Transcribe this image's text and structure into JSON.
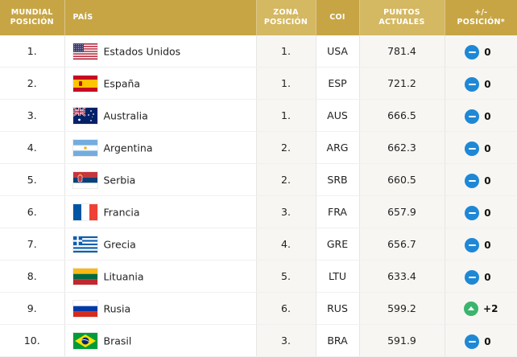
{
  "headers": {
    "world_rank": [
      "MUNDIAL",
      "POSICIÓN"
    ],
    "country": "PAÍS",
    "zone_rank": [
      "ZONA",
      "POSICIÓN"
    ],
    "ioc": "COI",
    "points": [
      "PUNTOS",
      "ACTUALES"
    ],
    "change": [
      "+/-",
      "POSICIÓN*"
    ]
  },
  "colors": {
    "header_gold": "#c7a544",
    "header_light": "#d4b862",
    "badge_neutral": "#1e88d6",
    "badge_up": "#3bb56e"
  },
  "rows": [
    {
      "rank": "1.",
      "country": "Estados Unidos",
      "flag": "usa-flag-icon",
      "zone": "1.",
      "ioc": "USA",
      "points": "781.4",
      "change": "0",
      "trend": "neutral"
    },
    {
      "rank": "2.",
      "country": "España",
      "flag": "spain-flag-icon",
      "zone": "1.",
      "ioc": "ESP",
      "points": "721.2",
      "change": "0",
      "trend": "neutral"
    },
    {
      "rank": "3.",
      "country": "Australia",
      "flag": "australia-flag-icon",
      "zone": "1.",
      "ioc": "AUS",
      "points": "666.5",
      "change": "0",
      "trend": "neutral"
    },
    {
      "rank": "4.",
      "country": "Argentina",
      "flag": "argentina-flag-icon",
      "zone": "2.",
      "ioc": "ARG",
      "points": "662.3",
      "change": "0",
      "trend": "neutral"
    },
    {
      "rank": "5.",
      "country": "Serbia",
      "flag": "serbia-flag-icon",
      "zone": "2.",
      "ioc": "SRB",
      "points": "660.5",
      "change": "0",
      "trend": "neutral"
    },
    {
      "rank": "6.",
      "country": "Francia",
      "flag": "france-flag-icon",
      "zone": "3.",
      "ioc": "FRA",
      "points": "657.9",
      "change": "0",
      "trend": "neutral"
    },
    {
      "rank": "7.",
      "country": "Grecia",
      "flag": "greece-flag-icon",
      "zone": "4.",
      "ioc": "GRE",
      "points": "656.7",
      "change": "0",
      "trend": "neutral"
    },
    {
      "rank": "8.",
      "country": "Lituania",
      "flag": "lithuania-flag-icon",
      "zone": "5.",
      "ioc": "LTU",
      "points": "633.4",
      "change": "0",
      "trend": "neutral"
    },
    {
      "rank": "9.",
      "country": "Rusia",
      "flag": "russia-flag-icon",
      "zone": "6.",
      "ioc": "RUS",
      "points": "599.2",
      "change": "+2",
      "trend": "up"
    },
    {
      "rank": "10.",
      "country": "Brasil",
      "flag": "brazil-flag-icon",
      "zone": "3.",
      "ioc": "BRA",
      "points": "591.9",
      "change": "0",
      "trend": "neutral"
    }
  ]
}
